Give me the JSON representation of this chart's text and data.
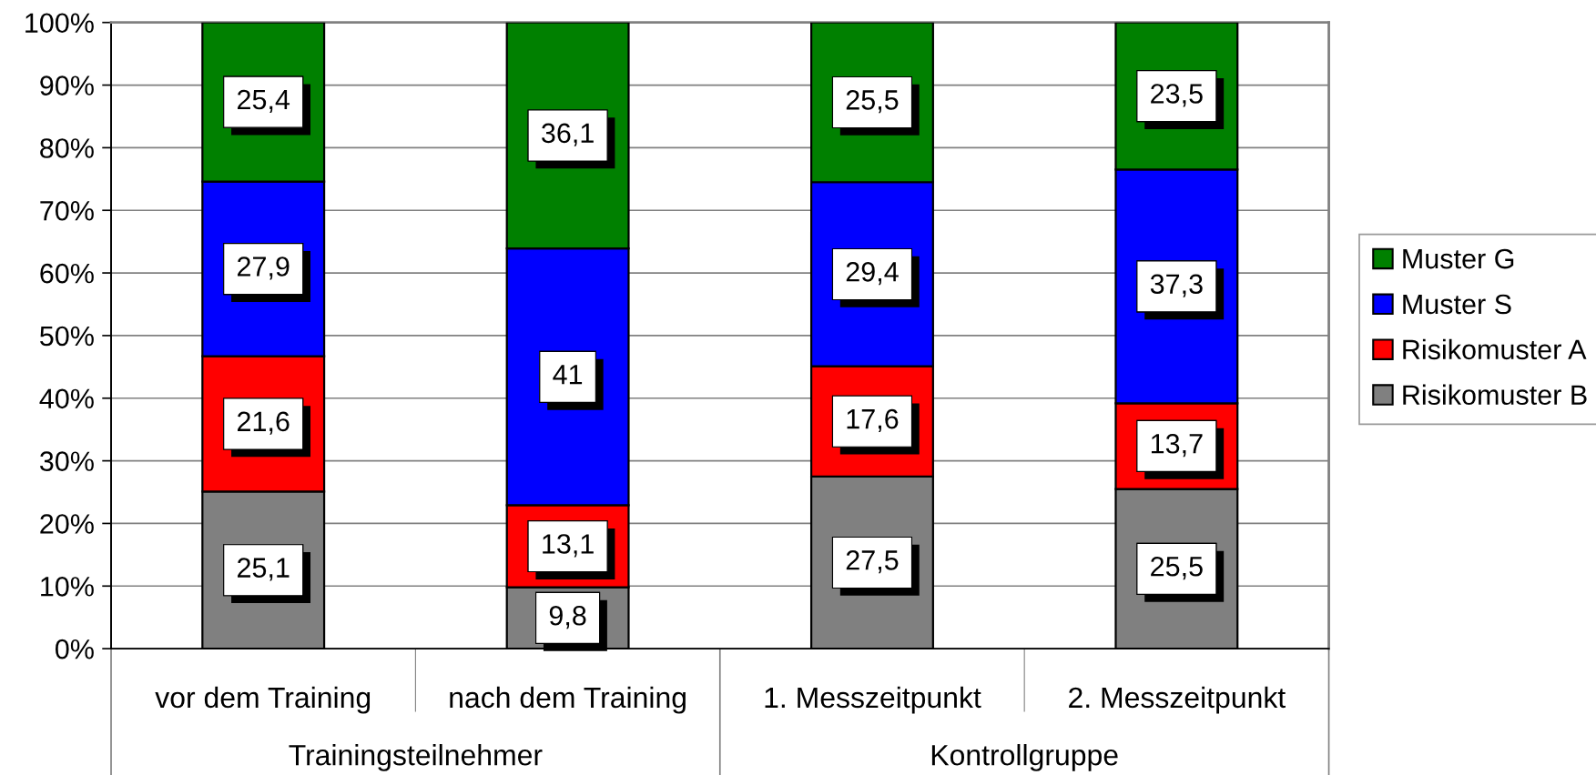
{
  "chart_data": {
    "type": "bar",
    "stacked": true,
    "categories": [
      "vor dem Training",
      "nach dem Training",
      "1. Messzeitpunkt",
      "2. Messzeitpunkt"
    ],
    "annotations": [
      "Trainingsteilnehmer",
      "Kontrollgruppe"
    ],
    "series": [
      {
        "name": "Risikomuster B",
        "color": "#808080",
        "values": [
          25.1,
          9.8,
          27.5,
          25.5
        ],
        "value_labels": [
          "25,1",
          "9,8",
          "27,5",
          "25,5"
        ]
      },
      {
        "name": "Risikomuster A",
        "color": "#ff0000",
        "values": [
          21.6,
          13.1,
          17.6,
          13.7
        ],
        "value_labels": [
          "21,6",
          "13,1",
          "17,6",
          "13,7"
        ]
      },
      {
        "name": "Muster S",
        "color": "#0000ff",
        "values": [
          27.9,
          41,
          29.4,
          37.3
        ],
        "value_labels": [
          "27,9",
          "41",
          "29,4",
          "37,3"
        ]
      },
      {
        "name": "Muster G",
        "color": "#008000",
        "values": [
          25.4,
          36.1,
          25.5,
          23.5
        ],
        "value_labels": [
          "25,4",
          "36,1",
          "25,5",
          "23,5"
        ]
      }
    ],
    "ylim": [
      0,
      100
    ],
    "yticks": [
      {
        "value": 0,
        "label": "0%"
      },
      {
        "value": 10,
        "label": "10%"
      },
      {
        "value": 20,
        "label": "20%"
      },
      {
        "value": 30,
        "label": "30%"
      },
      {
        "value": 40,
        "label": "40%"
      },
      {
        "value": 50,
        "label": "50%"
      },
      {
        "value": 60,
        "label": "60%"
      },
      {
        "value": 70,
        "label": "70%"
      },
      {
        "value": 80,
        "label": "80%"
      },
      {
        "value": 90,
        "label": "90%"
      },
      {
        "value": 100,
        "label": "100%"
      }
    ],
    "grid": "y",
    "legend": "right"
  }
}
